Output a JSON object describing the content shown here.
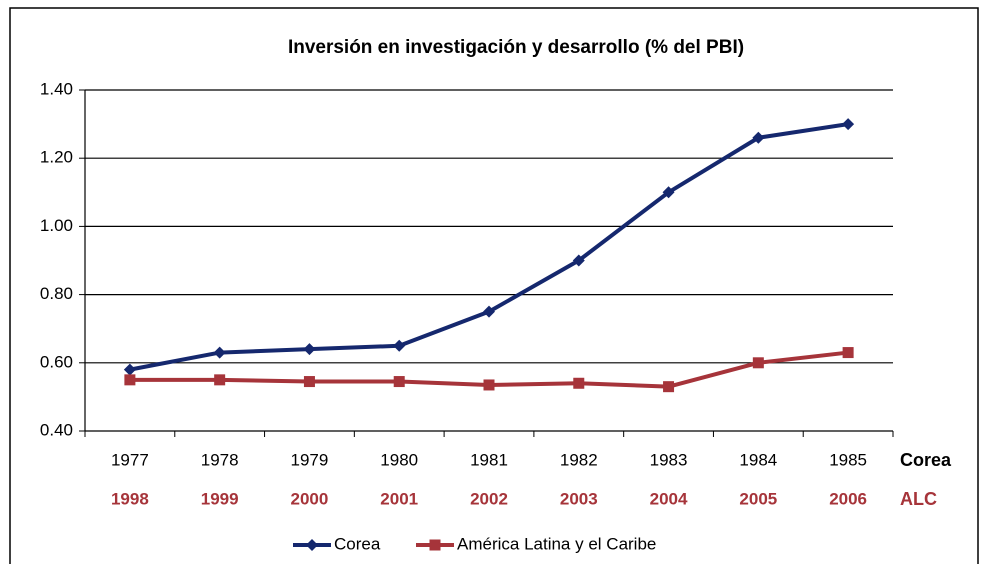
{
  "chart_data": {
    "type": "line",
    "title": "Inversión en investigación y desarrollo (% del PBI)",
    "category_rows": [
      {
        "name": "Corea",
        "color": "#000000",
        "labels": [
          "1977",
          "1978",
          "1979",
          "1980",
          "1981",
          "1982",
          "1983",
          "1984",
          "1985"
        ]
      },
      {
        "name": "ALC",
        "color": "#a6343a",
        "labels": [
          "1998",
          "1999",
          "2000",
          "2001",
          "2002",
          "2003",
          "2004",
          "2005",
          "2006"
        ]
      }
    ],
    "series": [
      {
        "name": "Corea",
        "color": "#15286e",
        "marker": "diamond",
        "values": [
          0.58,
          0.63,
          0.64,
          0.65,
          0.75,
          0.9,
          1.1,
          1.26,
          1.3
        ]
      },
      {
        "name": "América Latina y el Caribe",
        "color": "#a6343a",
        "marker": "square",
        "values": [
          0.55,
          0.55,
          0.545,
          0.545,
          0.535,
          0.54,
          0.53,
          0.6,
          0.63
        ]
      }
    ],
    "ylim": [
      0.4,
      1.4
    ],
    "yticks": [
      {
        "value": 0.4,
        "label": "0.40"
      },
      {
        "value": 0.6,
        "label": "0.60"
      },
      {
        "value": 0.8,
        "label": "0.80"
      },
      {
        "value": 1.0,
        "label": "1.00"
      },
      {
        "value": 1.2,
        "label": "1.20"
      },
      {
        "value": 1.4,
        "label": "1.40"
      }
    ],
    "grid": true
  }
}
